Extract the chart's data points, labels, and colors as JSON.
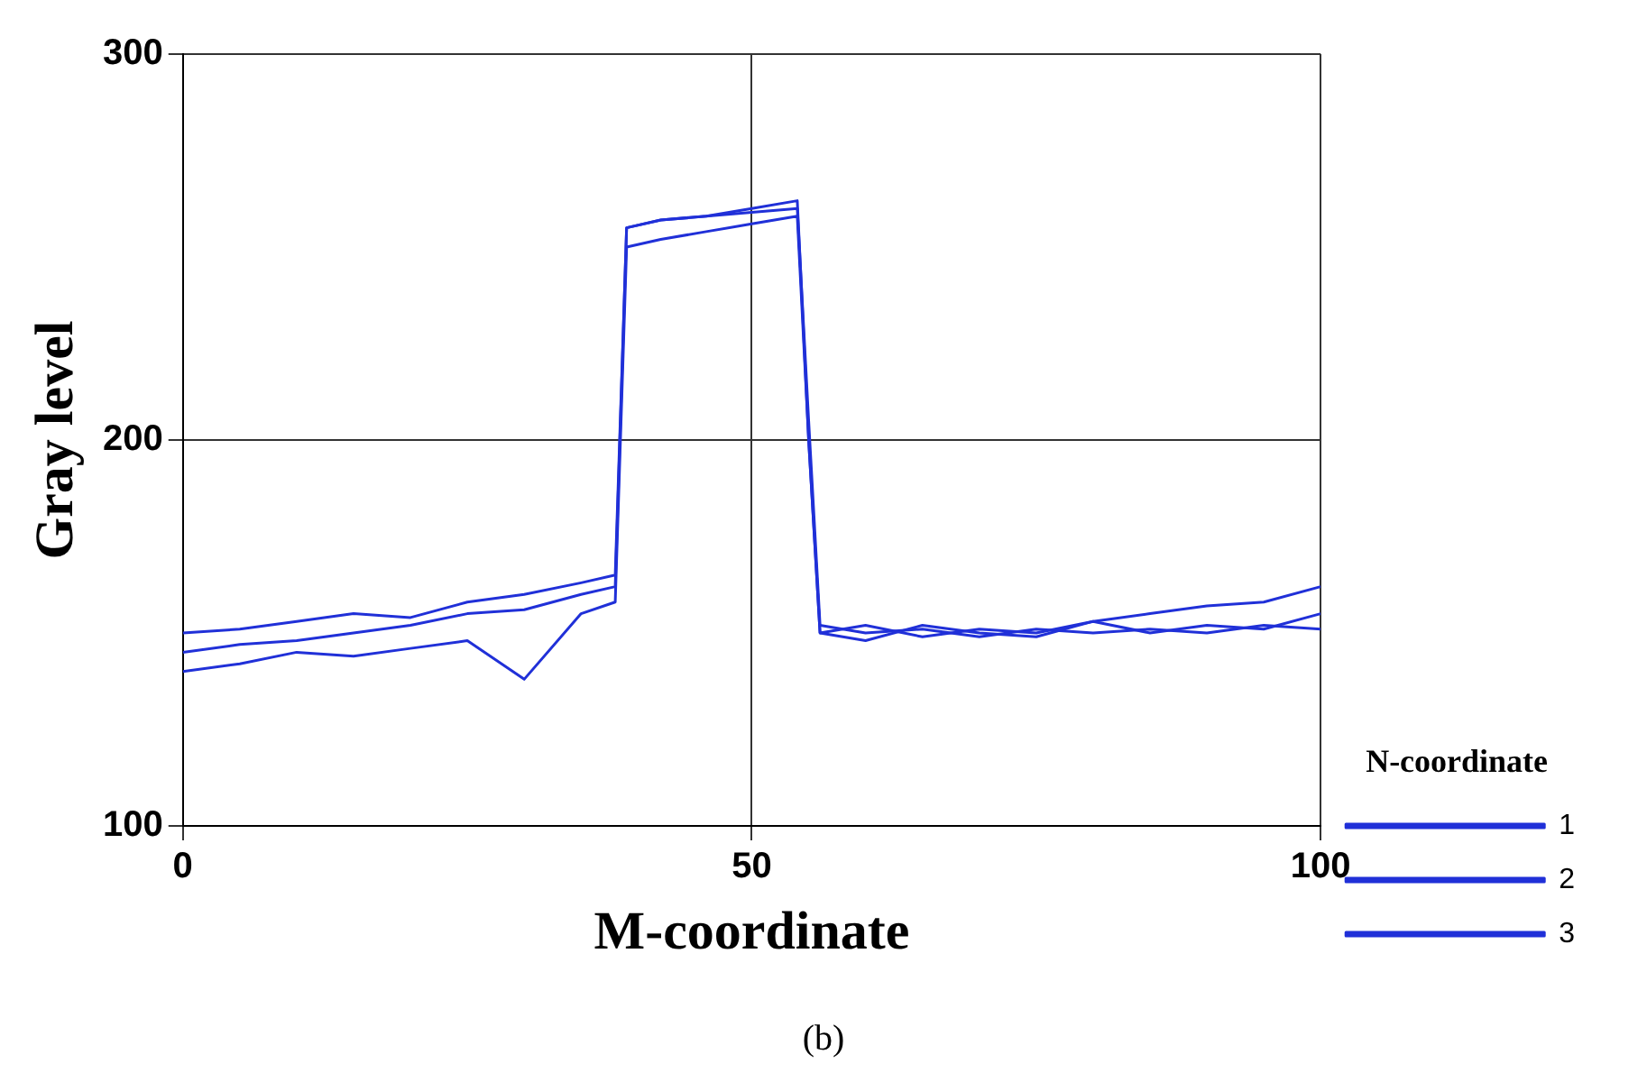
{
  "chart_data": {
    "type": "line",
    "xlabel": "M-coordinate",
    "ylabel": "Gray level",
    "legend_title": "N-coordinate",
    "legend": "right",
    "grid": true,
    "marker": "none",
    "x": [
      0,
      5,
      10,
      15,
      20,
      25,
      30,
      35,
      38,
      39,
      42,
      46,
      50,
      54,
      55,
      56,
      60,
      65,
      70,
      75,
      80,
      85,
      90,
      95,
      100
    ],
    "xlim": [
      0,
      100
    ],
    "xticks": [
      0,
      50,
      100
    ],
    "ylim": [
      100,
      300
    ],
    "yticks": [
      100,
      200,
      300
    ],
    "series": [
      {
        "name": "1",
        "color": "#2030d8",
        "values": [
          140,
          142,
          145,
          144,
          146,
          148,
          138,
          155,
          158,
          250,
          252,
          254,
          256,
          258,
          200,
          150,
          148,
          152,
          150,
          149,
          153,
          155,
          157,
          158,
          162
        ]
      },
      {
        "name": "2",
        "color": "#2030d8",
        "values": [
          145,
          147,
          148,
          150,
          152,
          155,
          156,
          160,
          162,
          255,
          257,
          258,
          260,
          262,
          200,
          150,
          152,
          149,
          151,
          150,
          153,
          150,
          152,
          151,
          155
        ]
      },
      {
        "name": "3",
        "color": "#2030d8",
        "values": [
          150,
          151,
          153,
          155,
          154,
          158,
          160,
          163,
          165,
          255,
          257,
          258,
          259,
          260,
          205,
          152,
          150,
          151,
          149,
          151,
          150,
          151,
          150,
          152,
          151
        ]
      }
    ],
    "annotations": [
      "(b)"
    ]
  }
}
